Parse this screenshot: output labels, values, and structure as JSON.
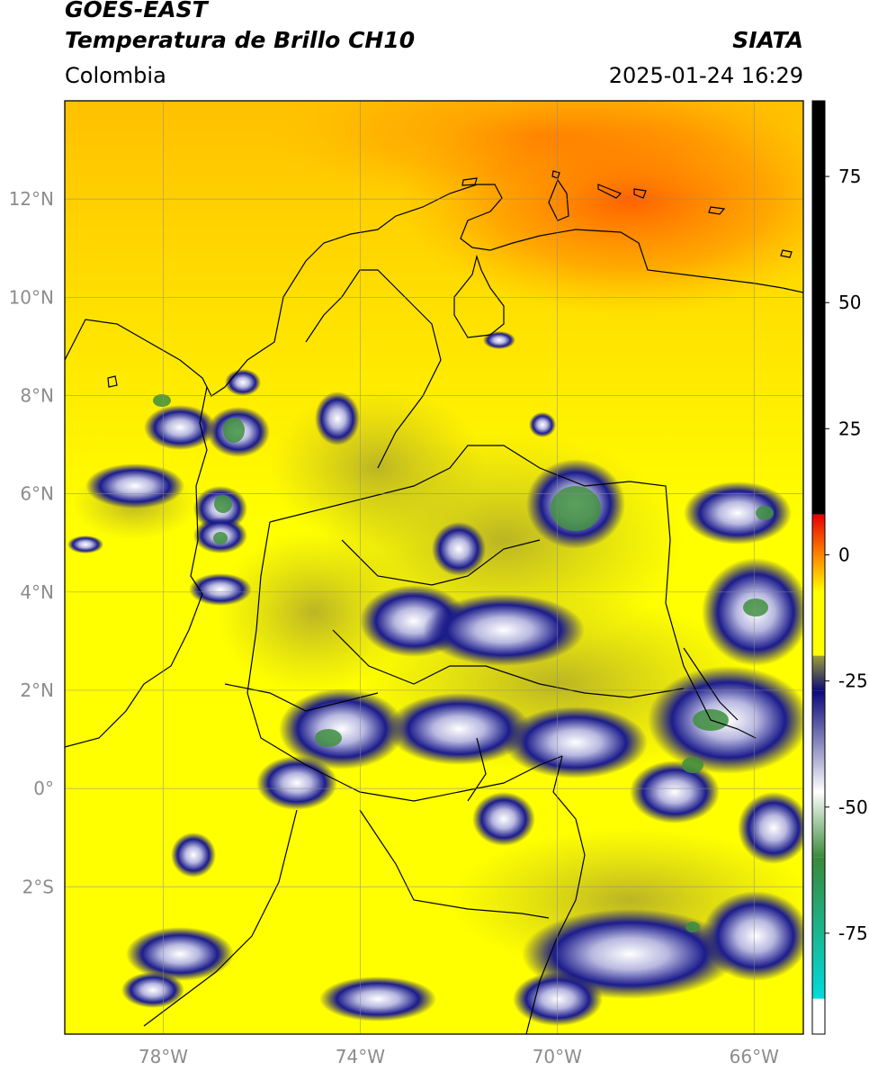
{
  "header": {
    "satellite": "GOES-EAST",
    "product": "Temperatura de Brillo CH10",
    "region": "Colombia",
    "agency": "SIATA",
    "timestamp": "2025-01-24 16:29"
  },
  "map": {
    "lat_ticks": [
      "12°N",
      "10°N",
      "8°N",
      "6°N",
      "4°N",
      "2°N",
      "0°",
      "2°S"
    ],
    "lon_ticks": [
      "78°W",
      "74°W",
      "70°W",
      "66°W"
    ],
    "gridlines": true,
    "extent": {
      "lon_min": -80,
      "lon_max": -65,
      "lat_min": -5,
      "lat_max": 14
    }
  },
  "colorbar": {
    "ticks": [
      "75",
      "50",
      "25",
      "0",
      "-25",
      "-50",
      "-75"
    ],
    "range": [
      -95,
      90
    ],
    "colors": {
      "black": "#000000",
      "red": "#e60000",
      "orange": "#ff8c00",
      "yellow": "#ffff00",
      "olive": "#9d9d36",
      "navy": "#0a0a7a",
      "white": "#ffffff",
      "green": "#3a8a3a",
      "cyan": "#00dcdc"
    }
  }
}
